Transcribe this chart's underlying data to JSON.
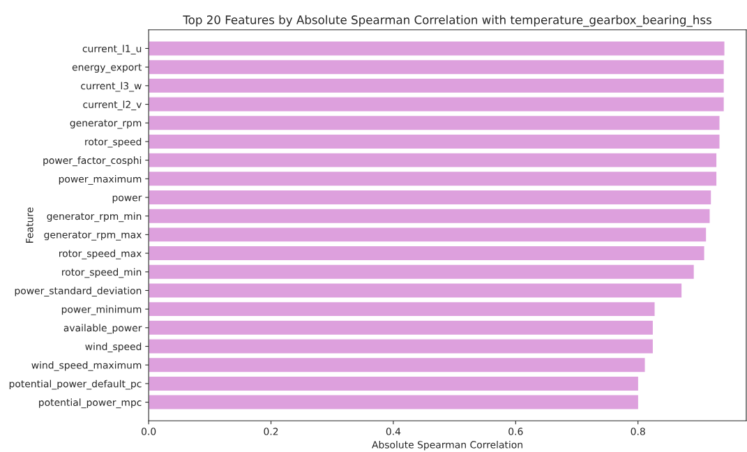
{
  "chart_data": {
    "type": "bar",
    "orientation": "horizontal",
    "title": "Top 20 Features by Absolute Spearman Correlation with temperature_gearbox_bearing_hss",
    "xlabel": "Absolute Spearman Correlation",
    "ylabel": "Feature",
    "categories": [
      "current_l1_u",
      "energy_export",
      "current_l3_w",
      "current_l2_v",
      "generator_rpm",
      "rotor_speed",
      "power_factor_cosphi",
      "power_maximum",
      "power",
      "generator_rpm_min",
      "generator_rpm_max",
      "rotor_speed_max",
      "rotor_speed_min",
      "power_standard_deviation",
      "power_minimum",
      "available_power",
      "wind_speed",
      "wind_speed_maximum",
      "potential_power_default_pc",
      "potential_power_mpc"
    ],
    "values": [
      0.942,
      0.941,
      0.941,
      0.941,
      0.934,
      0.934,
      0.929,
      0.929,
      0.92,
      0.918,
      0.912,
      0.909,
      0.892,
      0.872,
      0.828,
      0.825,
      0.825,
      0.812,
      0.801,
      0.801
    ],
    "color": "#dda0dd",
    "xlim": [
      0,
      0.977
    ],
    "xticks": [
      {
        "value": 0,
        "label": "0.0"
      },
      0.2,
      0.4,
      0.6,
      0.8
    ],
    "grid": false,
    "legend": false
  }
}
